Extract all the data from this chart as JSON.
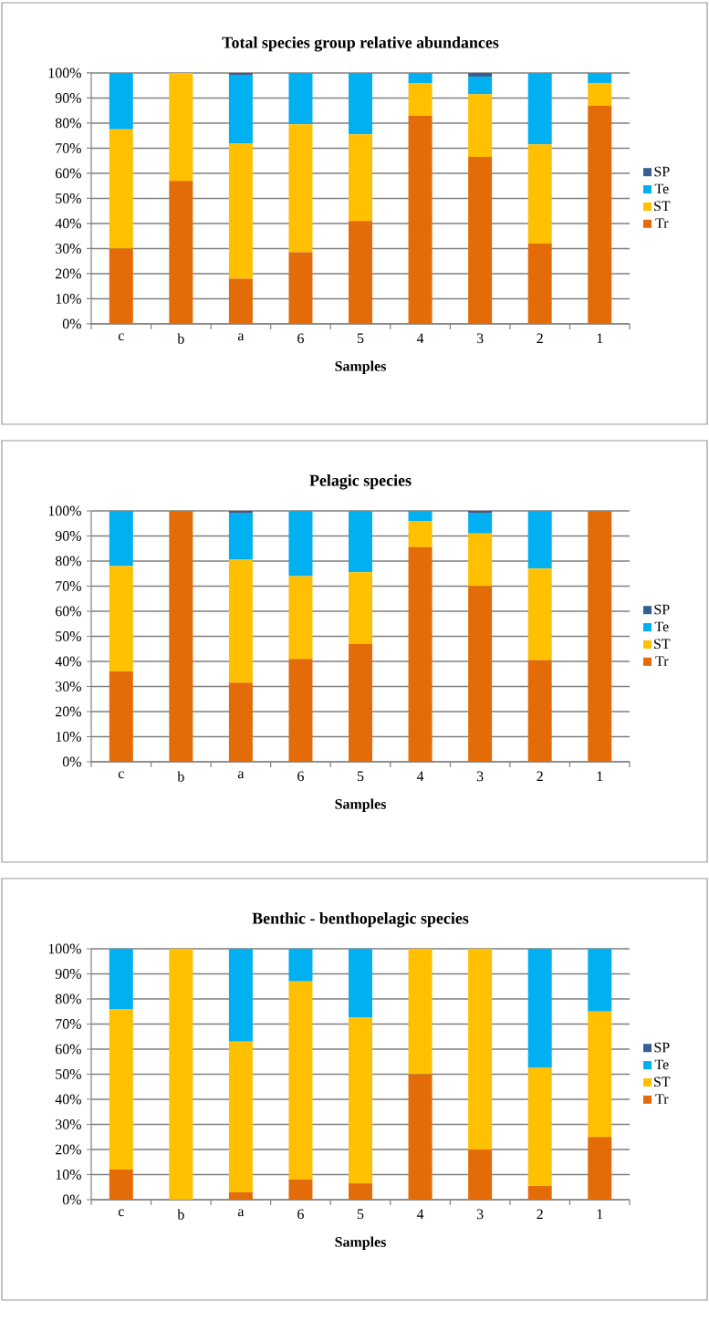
{
  "chart_data": [
    {
      "type": "bar",
      "stacked": true,
      "title": "Total species group relative abundances",
      "xlabel": "Samples",
      "categories": [
        "c",
        "b",
        "a",
        "6",
        "5",
        "4",
        "3",
        "2",
        "1"
      ],
      "series": [
        {
          "name": "Tr",
          "color": "#e36c09",
          "values": [
            30,
            57,
            18,
            28.5,
            41,
            83,
            66.5,
            32,
            87
          ]
        },
        {
          "name": "ST",
          "color": "#ffc000",
          "values": [
            47.5,
            43,
            54,
            51,
            34.5,
            13,
            25,
            39.5,
            9
          ]
        },
        {
          "name": "Te",
          "color": "#00b0f0",
          "values": [
            22.5,
            0,
            27,
            20.5,
            24.5,
            4,
            7,
            28.5,
            4
          ]
        },
        {
          "name": "SP",
          "color": "#376092",
          "values": [
            0,
            0,
            1,
            0,
            0,
            0,
            1.5,
            0,
            0
          ]
        }
      ],
      "ylim": [
        0,
        100
      ],
      "yticks": [
        {
          "value": 0,
          "label": "0%"
        },
        {
          "value": 10,
          "label": "10%"
        },
        {
          "value": 20,
          "label": "20%"
        },
        {
          "value": 30,
          "label": "30%"
        },
        {
          "value": 40,
          "label": "40%"
        },
        {
          "value": 50,
          "label": "50%"
        },
        {
          "value": 60,
          "label": "60%"
        },
        {
          "value": 70,
          "label": "70%"
        },
        {
          "value": 80,
          "label": "80%"
        },
        {
          "value": 90,
          "label": "90%"
        },
        {
          "value": 100,
          "label": "100%"
        }
      ],
      "grid": "y",
      "legend": "right"
    },
    {
      "type": "bar",
      "stacked": true,
      "title": "Pelagic species",
      "xlabel": "Samples",
      "categories": [
        "c",
        "b",
        "a",
        "6",
        "5",
        "4",
        "3",
        "2",
        "1"
      ],
      "series": [
        {
          "name": "Tr",
          "color": "#e36c09",
          "values": [
            36,
            100,
            31.5,
            41,
            47,
            85.5,
            70,
            40.5,
            100
          ]
        },
        {
          "name": "ST",
          "color": "#ffc000",
          "values": [
            42,
            0,
            49,
            33,
            28.5,
            10.5,
            21,
            36.5,
            0
          ]
        },
        {
          "name": "Te",
          "color": "#00b0f0",
          "values": [
            22,
            0,
            18.5,
            26,
            24.5,
            4,
            8,
            23,
            0
          ]
        },
        {
          "name": "SP",
          "color": "#376092",
          "values": [
            0,
            0,
            1,
            0,
            0,
            0,
            1,
            0,
            0
          ]
        }
      ],
      "ylim": [
        0,
        100
      ],
      "yticks": [
        {
          "value": 0,
          "label": "0%"
        },
        {
          "value": 10,
          "label": "10%"
        },
        {
          "value": 20,
          "label": "20%"
        },
        {
          "value": 30,
          "label": "30%"
        },
        {
          "value": 40,
          "label": "40%"
        },
        {
          "value": 50,
          "label": "50%"
        },
        {
          "value": 60,
          "label": "60%"
        },
        {
          "value": 70,
          "label": "70%"
        },
        {
          "value": 80,
          "label": "80%"
        },
        {
          "value": 90,
          "label": "90%"
        },
        {
          "value": 100,
          "label": "100%"
        }
      ],
      "grid": "y",
      "legend": "right"
    },
    {
      "type": "bar",
      "stacked": true,
      "title": "Benthic - benthopelagic species",
      "xlabel": "Samples",
      "categories": [
        "c",
        "b",
        "a",
        "6",
        "5",
        "4",
        "3",
        "2",
        "1"
      ],
      "series": [
        {
          "name": "Tr",
          "color": "#e36c09",
          "values": [
            12,
            0,
            3,
            8,
            6.5,
            50,
            20,
            5.5,
            25
          ]
        },
        {
          "name": "ST",
          "color": "#ffc000",
          "values": [
            64,
            100,
            60,
            79,
            66,
            50,
            80,
            47,
            50
          ]
        },
        {
          "name": "Te",
          "color": "#00b0f0",
          "values": [
            24,
            0,
            37,
            13,
            27.5,
            0,
            0,
            47.5,
            25
          ]
        },
        {
          "name": "SP",
          "color": "#376092",
          "values": [
            0,
            0,
            0,
            0,
            0,
            0,
            0,
            0,
            0
          ]
        }
      ],
      "ylim": [
        0,
        100
      ],
      "yticks": [
        {
          "value": 0,
          "label": "0%"
        },
        {
          "value": 10,
          "label": "10%"
        },
        {
          "value": 20,
          "label": "20%"
        },
        {
          "value": 30,
          "label": "30%"
        },
        {
          "value": 40,
          "label": "40%"
        },
        {
          "value": 50,
          "label": "50%"
        },
        {
          "value": 60,
          "label": "60%"
        },
        {
          "value": 70,
          "label": "70%"
        },
        {
          "value": 80,
          "label": "80%"
        },
        {
          "value": 90,
          "label": "90%"
        },
        {
          "value": 100,
          "label": "100%"
        }
      ],
      "grid": "y",
      "legend": "right"
    }
  ]
}
